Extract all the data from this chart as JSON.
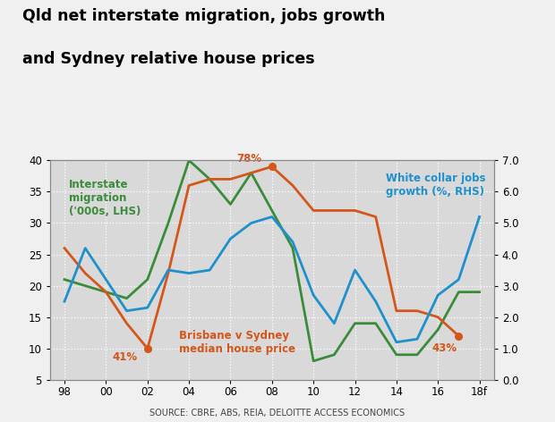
{
  "title_line1": "Qld net interstate migration, jobs growth",
  "title_line2": "and Sydney relative house prices",
  "source": "SOURCE: CBRE, ABS, REIA, DELOITTE ACCESS ECONOMICS",
  "xtick_labels": [
    "98",
    "00",
    "02",
    "04",
    "06",
    "08",
    "10",
    "12",
    "14",
    "16",
    "18f"
  ],
  "xtick_positions": [
    1998,
    2000,
    2002,
    2004,
    2006,
    2008,
    2010,
    2012,
    2014,
    2016,
    2018
  ],
  "migration_color": "#3a8c3a",
  "house_price_color": "#d4561a",
  "jobs_color": "#1e90cc",
  "migration_data": {
    "x": [
      1998,
      1999,
      2000,
      2001,
      2002,
      2003,
      2004,
      2005,
      2006,
      2007,
      2008,
      2009,
      2010,
      2011,
      2012,
      2013,
      2014,
      2015,
      2016,
      2017,
      2018
    ],
    "y": [
      21,
      20,
      19,
      18,
      21,
      30,
      40,
      37,
      33,
      38,
      32,
      26,
      8,
      9,
      14,
      14,
      9,
      9,
      13,
      19,
      19
    ]
  },
  "house_price_data": {
    "x": [
      1998,
      1999,
      2000,
      2001,
      2002,
      2003,
      2004,
      2005,
      2006,
      2007,
      2008,
      2009,
      2010,
      2011,
      2012,
      2013,
      2014,
      2015,
      2016,
      2017
    ],
    "y": [
      26,
      22,
      19,
      14,
      10,
      22,
      36,
      37,
      37,
      38,
      39,
      36,
      32,
      32,
      32,
      31,
      16,
      16,
      15,
      12
    ]
  },
  "jobs_data": {
    "x": [
      1998,
      1999,
      2000,
      2001,
      2002,
      2003,
      2004,
      2005,
      2006,
      2007,
      2008,
      2009,
      2010,
      2011,
      2012,
      2013,
      2014,
      2015,
      2016,
      2017,
      2018
    ],
    "y": [
      2.5,
      4.2,
      3.2,
      2.2,
      2.3,
      3.5,
      3.4,
      3.5,
      4.5,
      5.0,
      5.2,
      4.4,
      2.7,
      1.8,
      3.5,
      2.5,
      1.2,
      1.3,
      2.7,
      3.2,
      5.2
    ]
  },
  "ylim_left": [
    5,
    40
  ],
  "ylim_right": [
    0.0,
    7.0
  ],
  "yticks_left": [
    5,
    10,
    15,
    20,
    25,
    30,
    35,
    40
  ],
  "yticks_right": [
    0.0,
    1.0,
    2.0,
    3.0,
    4.0,
    5.0,
    6.0,
    7.0
  ],
  "xlim": [
    1997.3,
    2018.7
  ],
  "bg_color": "#d9d9d9",
  "fig_bg_color": "#f0f0f0",
  "grid_color": "#ffffff",
  "lw": 2.0,
  "ann_41_x": 2002,
  "ann_41_y": 10,
  "ann_78_x": 2008,
  "ann_78_y": 39,
  "ann_43_x": 2017,
  "ann_43_y": 12
}
